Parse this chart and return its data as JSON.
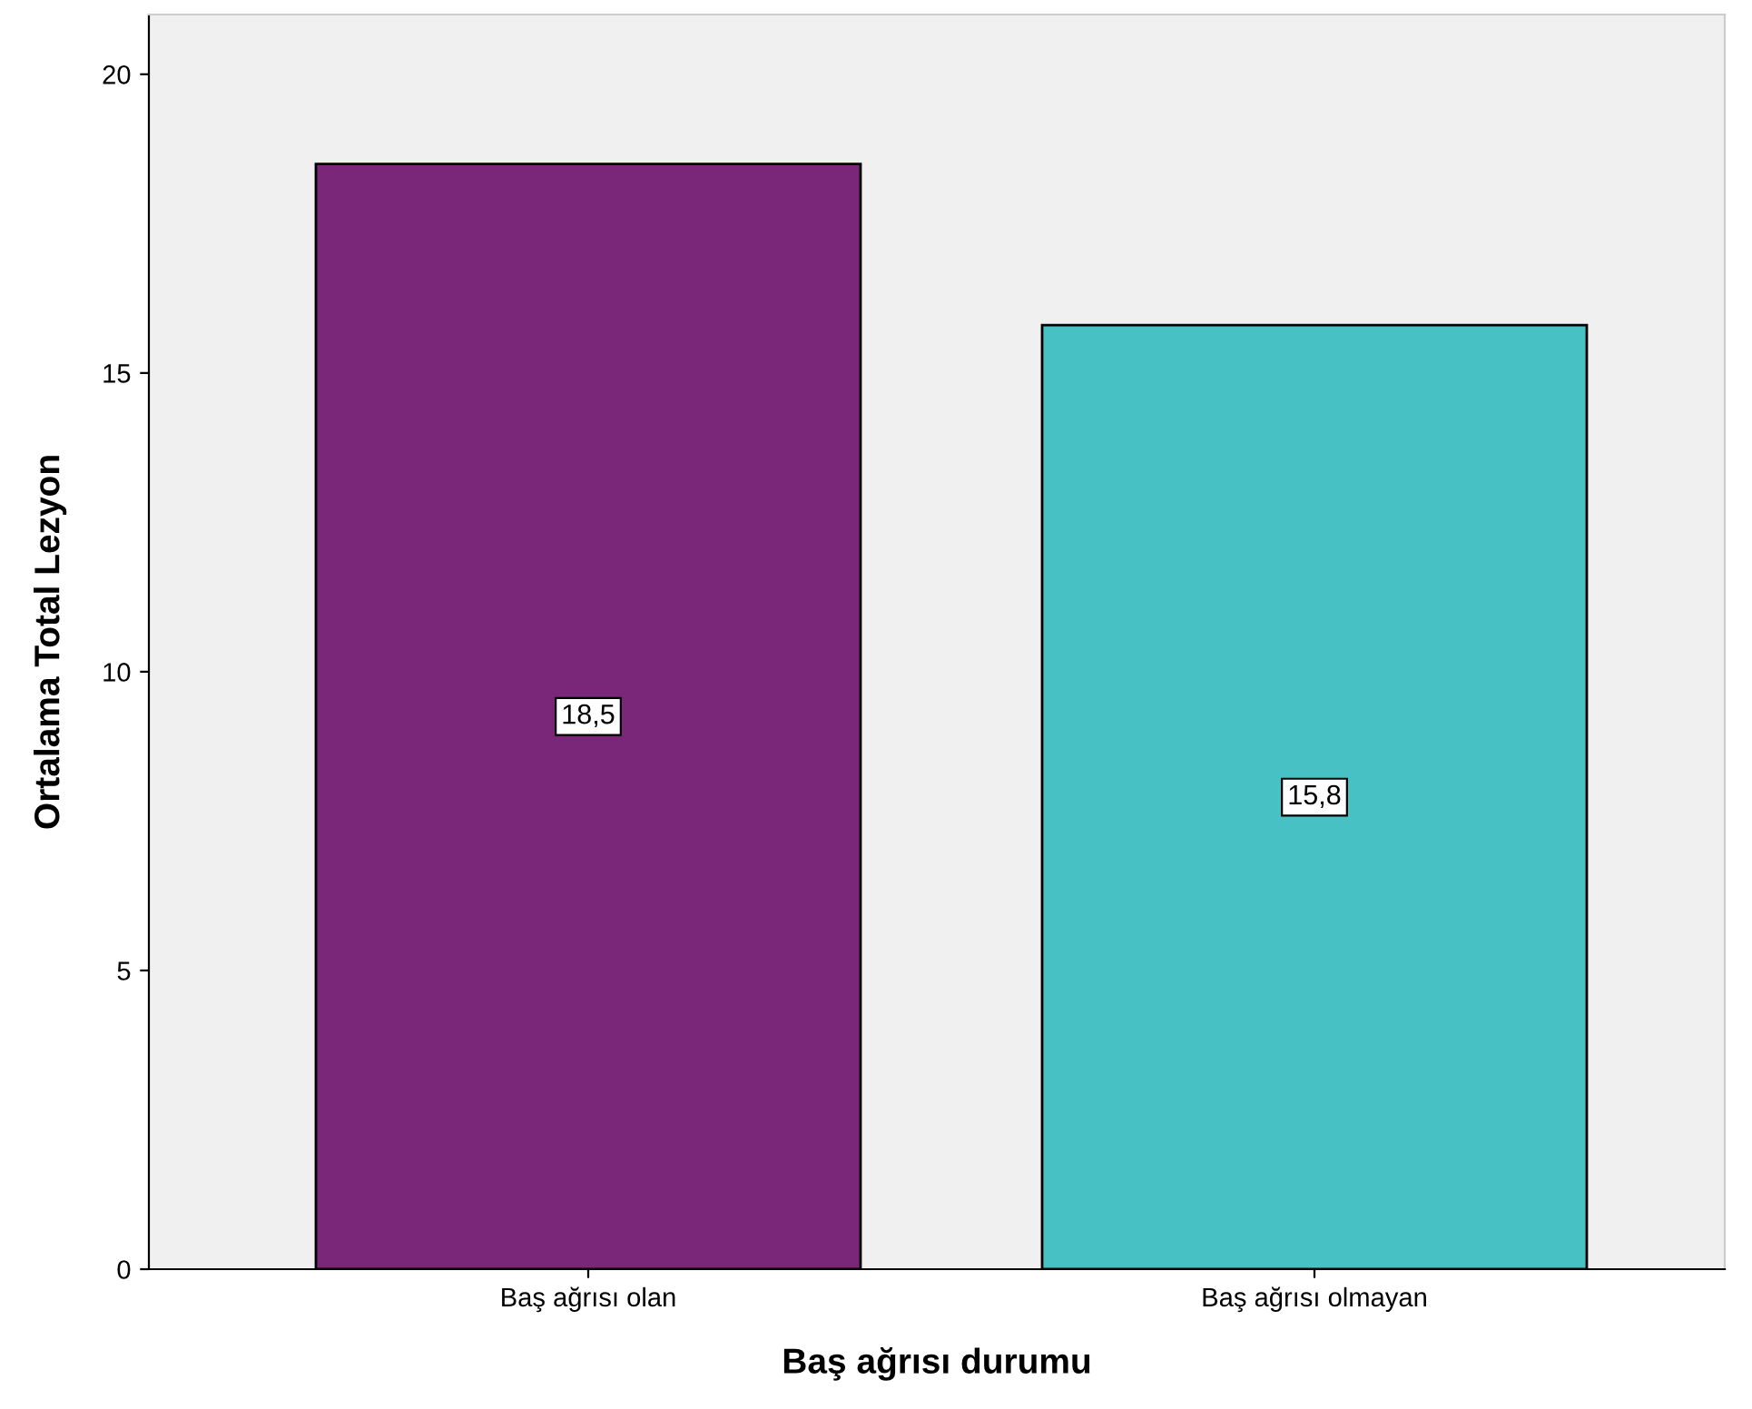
{
  "chart_data": {
    "type": "bar",
    "xlabel": "Baş ağrısı durumu",
    "ylabel": "Ortalama Total Lezyon",
    "categories": [
      "Baş ağrısı olan",
      "Baş ağrısı olmayan"
    ],
    "values": [
      18.5,
      15.8
    ],
    "colors": [
      "#7b2779",
      "#48c1c4"
    ],
    "value_labels": [
      "18,5",
      "15,8"
    ],
    "ylim": [
      0,
      21
    ],
    "yticks": [
      0,
      5,
      10,
      15,
      20
    ],
    "grid": false,
    "legend": false
  }
}
